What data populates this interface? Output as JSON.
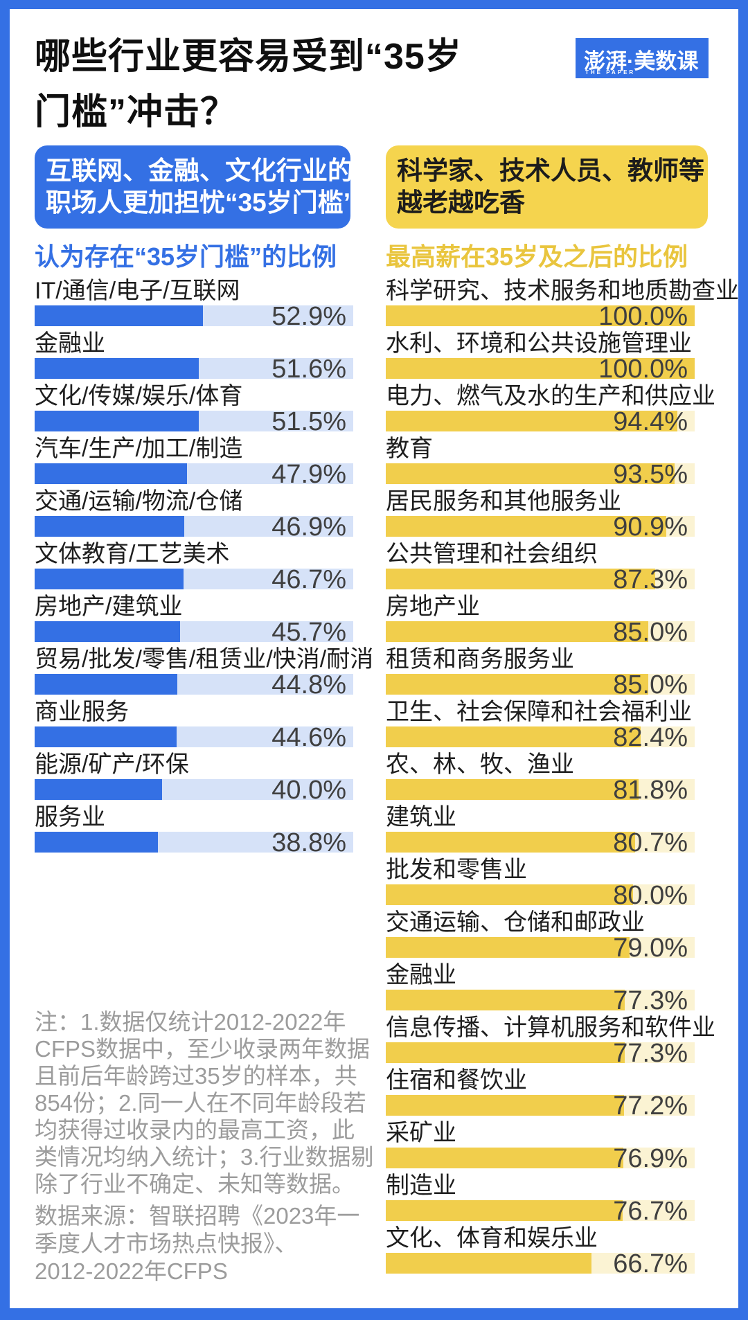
{
  "page": {
    "title_lines": [
      "哪些行业更容易受到“35岁",
      "门槛”冲击？"
    ],
    "logo": {
      "text": "澎湃·美数课",
      "subtext": "THE PAPER"
    },
    "colors": {
      "brand_blue": "#3470E4",
      "blue_track": "#D6E2F8",
      "brand_yellow": "#F1CE4C",
      "yellow_box": "#F5D44E",
      "yellow_track": "#FBF3D3",
      "subtitle_gold": "#E9C53E",
      "note_gray": "#9C9C9C"
    }
  },
  "left_panel": {
    "headline_lines": [
      "互联网、金融、文化行业的",
      "职场人更加担忧“35岁门槛”"
    ],
    "subtitle": "认为存在“35岁门槛”的比例"
  },
  "right_panel": {
    "headline_lines": [
      "科学家、技术人员、教师等",
      "越老越吃香"
    ],
    "subtitle": "最高薪在35岁及之后的比例"
  },
  "footnote": {
    "note_lines": [
      "注：1.数据仅统计2012-2022年",
      "CFPS数据中，至少收录两年数据",
      "且前后年龄跨过35岁的样本，共",
      "854份；2.同一人在不同年龄段若",
      "均获得过收录内的最高工资，此",
      "类情况均纳入统计；3.行业数据剔",
      "除了行业不确定、未知等数据。"
    ],
    "source_lines": [
      "数据来源：智联招聘《2023年一",
      "季度人才市场热点快报》、",
      "2012-2022年CFPS"
    ]
  },
  "chart_data": [
    {
      "type": "bar",
      "orientation": "horizontal",
      "title": "认为存在“35岁门槛”的比例",
      "unit": "%",
      "xlim": [
        0,
        100
      ],
      "bar_color": "#3470E4",
      "track_color": "#D6E2F8",
      "categories": [
        "IT/通信/电子/互联网",
        "金融业",
        "文化/传媒/娱乐/体育",
        "汽车/生产/加工/制造",
        "交通/运输/物流/仓储",
        "文体教育/工艺美术",
        "房地产/建筑业",
        "贸易/批发/零售/租赁业/快消/耐消",
        "商业服务",
        "能源/矿产/环保",
        "服务业"
      ],
      "values": [
        52.9,
        51.6,
        51.5,
        47.9,
        46.9,
        46.7,
        45.7,
        44.8,
        44.6,
        40.0,
        38.8
      ],
      "value_labels": [
        "52.9%",
        "51.6%",
        "51.5%",
        "47.9%",
        "46.9%",
        "46.7%",
        "45.7%",
        "44.8%",
        "44.6%",
        "40.0%",
        "38.8%"
      ]
    },
    {
      "type": "bar",
      "orientation": "horizontal",
      "title": "最高薪在35岁及之后的比例",
      "unit": "%",
      "xlim": [
        0,
        100
      ],
      "bar_color": "#F1CE4C",
      "track_color": "#FBF3D3",
      "categories": [
        "科学研究、技术服务和地质勘查业",
        "水利、环境和公共设施管理业",
        "电力、燃气及水的生产和供应业",
        "教育",
        "居民服务和其他服务业",
        "公共管理和社会组织",
        "房地产业",
        "租赁和商务服务业",
        "卫生、社会保障和社会福利业",
        "农、林、牧、渔业",
        "建筑业",
        "批发和零售业",
        "交通运输、仓储和邮政业",
        "金融业",
        "信息传播、计算机服务和软件业",
        "住宿和餐饮业",
        "采矿业",
        "制造业",
        "文化、体育和娱乐业"
      ],
      "values": [
        100.0,
        100.0,
        94.4,
        93.5,
        90.9,
        87.3,
        85.0,
        85.0,
        82.4,
        81.8,
        80.7,
        80.0,
        79.0,
        77.3,
        77.3,
        77.2,
        76.9,
        76.7,
        66.7
      ],
      "value_labels": [
        "100.0%",
        "100.0%",
        "94.4%",
        "93.5%",
        "90.9%",
        "87.3%",
        "85.0%",
        "85.0%",
        "82.4%",
        "81.8%",
        "80.7%",
        "80.0%",
        "79.0%",
        "77.3%",
        "77.3%",
        "77.2%",
        "76.9%",
        "76.7%",
        "66.7%"
      ]
    }
  ]
}
